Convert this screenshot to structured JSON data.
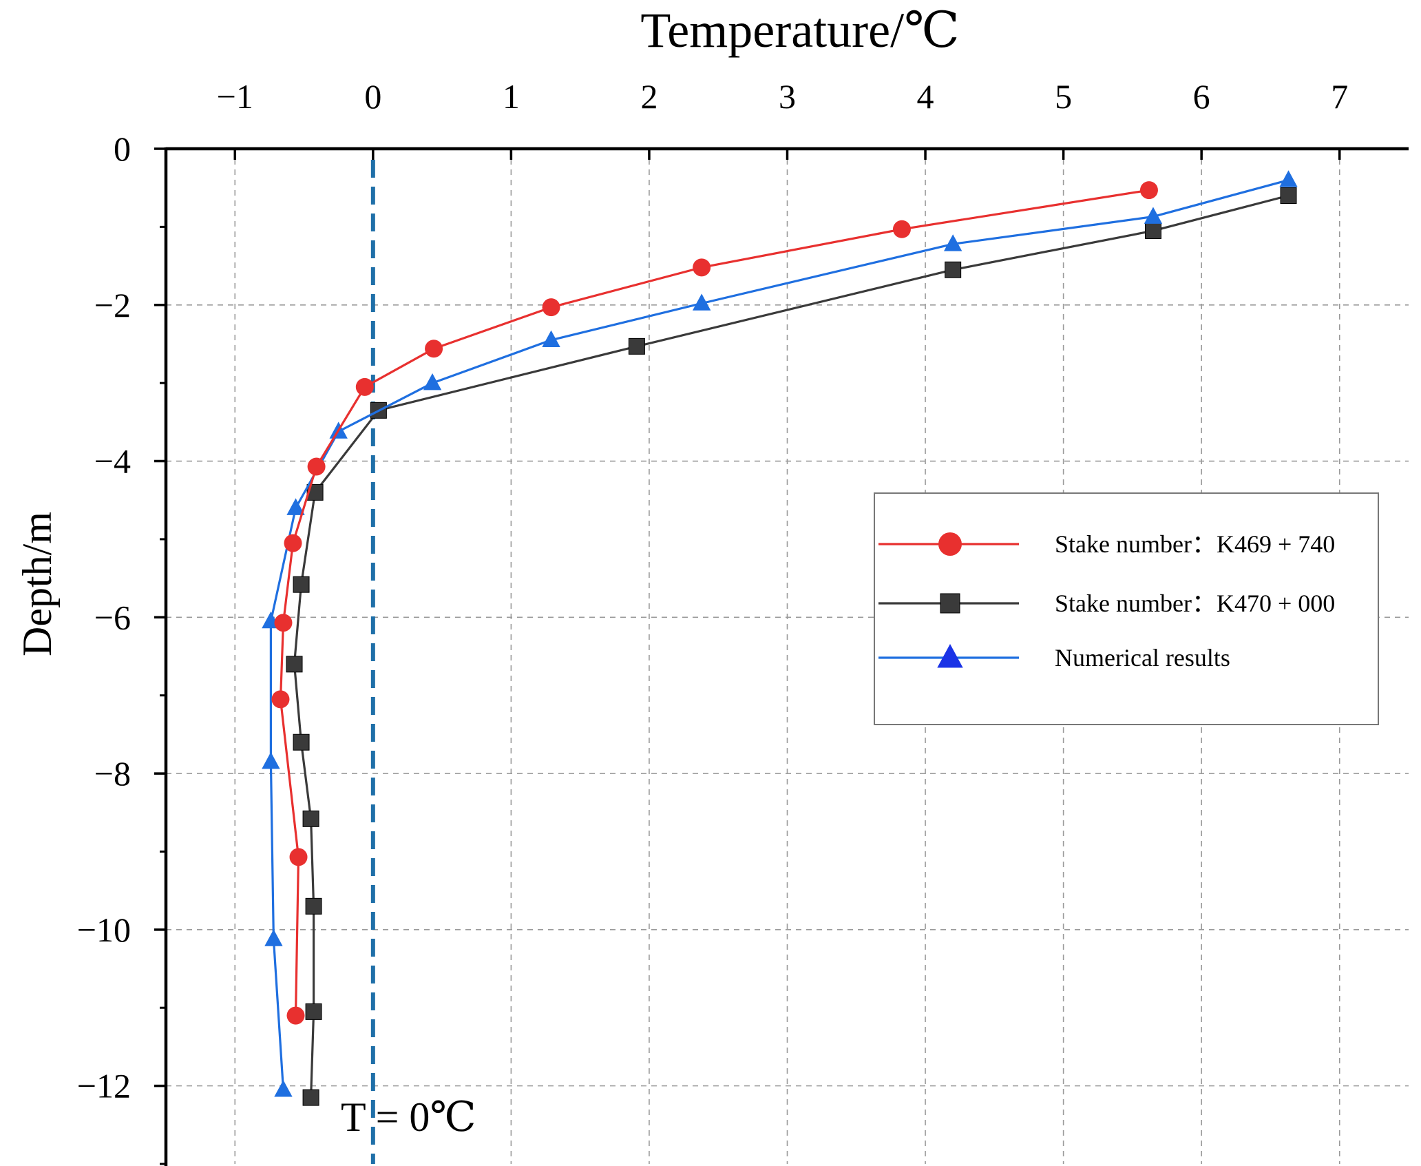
{
  "chart_data": {
    "type": "line",
    "title": "",
    "xlabel": "Temperature/℃",
    "ylabel": "Depth/m",
    "xlim": [
      -1.5,
      7.5
    ],
    "ylim": [
      -13,
      0
    ],
    "xaxis_position": "top",
    "x_ticks": [
      -1,
      0,
      1,
      2,
      3,
      4,
      5,
      6,
      7
    ],
    "x_tick_labels": [
      "−1",
      "0",
      "1",
      "2",
      "3",
      "4",
      "5",
      "6",
      "7"
    ],
    "y_ticks": [
      0,
      -2,
      -4,
      -6,
      -8,
      -10,
      -12
    ],
    "y_tick_labels": [
      "0",
      "−2",
      "−4",
      "−6",
      "−8",
      "−10",
      "−12"
    ],
    "grid": true,
    "legend_position": "right",
    "reference_line": {
      "x": 0,
      "label": "T = 0℃",
      "color": "#1f6fa8"
    },
    "series": [
      {
        "name": "Stake number：K469 + 740",
        "color": "#e8302f",
        "marker": "circle",
        "points": [
          {
            "x": 5.62,
            "y": -0.53
          },
          {
            "x": 3.83,
            "y": -1.03
          },
          {
            "x": 2.38,
            "y": -1.52
          },
          {
            "x": 1.29,
            "y": -2.03
          },
          {
            "x": 0.44,
            "y": -2.56
          },
          {
            "x": -0.06,
            "y": -3.05
          },
          {
            "x": -0.41,
            "y": -4.07
          },
          {
            "x": -0.58,
            "y": -5.05
          },
          {
            "x": -0.65,
            "y": -6.07
          },
          {
            "x": -0.67,
            "y": -7.05
          },
          {
            "x": -0.54,
            "y": -9.07
          },
          {
            "x": -0.56,
            "y": -11.1
          }
        ]
      },
      {
        "name": "Stake number：K470 + 000",
        "color": "#3a3a3a",
        "marker": "square",
        "points": [
          {
            "x": 6.63,
            "y": -0.6
          },
          {
            "x": 5.65,
            "y": -1.05
          },
          {
            "x": 4.2,
            "y": -1.55
          },
          {
            "x": 1.91,
            "y": -2.53
          },
          {
            "x": 0.04,
            "y": -3.35
          },
          {
            "x": -0.42,
            "y": -4.4
          },
          {
            "x": -0.52,
            "y": -5.58
          },
          {
            "x": -0.57,
            "y": -6.6
          },
          {
            "x": -0.52,
            "y": -7.6
          },
          {
            "x": -0.45,
            "y": -8.58
          },
          {
            "x": -0.43,
            "y": -9.7
          },
          {
            "x": -0.43,
            "y": -11.05
          },
          {
            "x": -0.45,
            "y": -12.15
          }
        ]
      },
      {
        "name": "Numerical results",
        "color": "#1f6fe0",
        "marker": "triangle",
        "points": [
          {
            "x": 6.63,
            "y": -0.4
          },
          {
            "x": 5.65,
            "y": -0.87
          },
          {
            "x": 4.2,
            "y": -1.22
          },
          {
            "x": 2.38,
            "y": -1.98
          },
          {
            "x": 1.29,
            "y": -2.45
          },
          {
            "x": 0.43,
            "y": -3.0
          },
          {
            "x": -0.25,
            "y": -3.62
          },
          {
            "x": -0.56,
            "y": -4.6
          },
          {
            "x": -0.74,
            "y": -6.05
          },
          {
            "x": -0.74,
            "y": -7.85
          },
          {
            "x": -0.72,
            "y": -10.12
          },
          {
            "x": -0.65,
            "y": -12.05
          }
        ]
      }
    ]
  }
}
